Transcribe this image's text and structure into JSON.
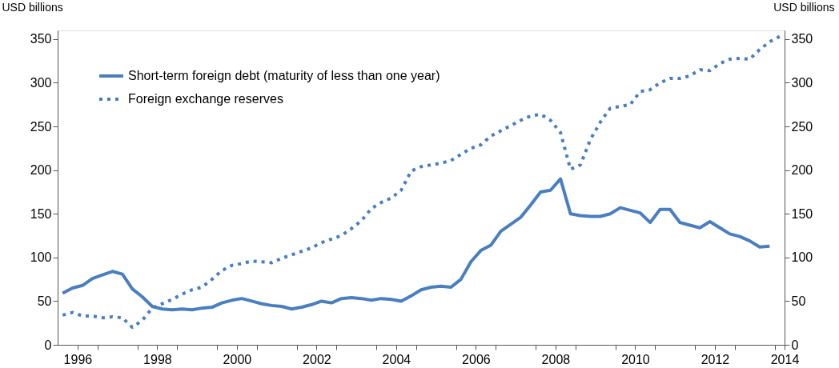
{
  "chart_data": {
    "type": "line",
    "ylabel": "USD billions",
    "y2label": "USD billions",
    "x": [
      1996.125,
      1996.375,
      1996.625,
      1996.875,
      1997.125,
      1997.375,
      1997.625,
      1997.875,
      1998.125,
      1998.375,
      1998.625,
      1998.875,
      1999.125,
      1999.375,
      1999.625,
      1999.875,
      2000.125,
      2000.375,
      2000.625,
      2000.875,
      2001.125,
      2001.375,
      2001.625,
      2001.875,
      2002.125,
      2002.375,
      2002.625,
      2002.875,
      2003.125,
      2003.375,
      2003.625,
      2003.875,
      2004.125,
      2004.375,
      2004.625,
      2004.875,
      2005.125,
      2005.375,
      2005.625,
      2005.875,
      2006.125,
      2006.375,
      2006.625,
      2006.875,
      2007.125,
      2007.375,
      2007.625,
      2007.875,
      2008.125,
      2008.375,
      2008.625,
      2008.875,
      2009.125,
      2009.375,
      2009.625,
      2009.875,
      2010.125,
      2010.375,
      2010.625,
      2010.875,
      2011.125,
      2011.375,
      2011.625,
      2011.875,
      2012.125,
      2012.375,
      2012.625,
      2012.875,
      2013.125,
      2013.375,
      2013.625,
      2013.875,
      2014.125
    ],
    "series": [
      {
        "name": "Short-term foreign debt (maturity of less than one year)",
        "color": "#4a7ebf",
        "line_style": "solid",
        "values": [
          59,
          65,
          68,
          76,
          80,
          84,
          81,
          64,
          55,
          44,
          41,
          40,
          41,
          40,
          42,
          43,
          48,
          51,
          53,
          50,
          47,
          45,
          44,
          41,
          43,
          46,
          50,
          48,
          53,
          54,
          53,
          51,
          53,
          52,
          50,
          56,
          63,
          66,
          67,
          66,
          75,
          95,
          108,
          114,
          130,
          138,
          146,
          160,
          175,
          177,
          190,
          150,
          148,
          147,
          147,
          150,
          157,
          154,
          151,
          140,
          155,
          155,
          140,
          137,
          134,
          141,
          134,
          127,
          124,
          119,
          112,
          113,
          null
        ]
      },
      {
        "name": "Foreign exchange reserves",
        "color": "#4a7ebf",
        "line_style": "dotted",
        "values": [
          34,
          37,
          33,
          33,
          31,
          32,
          31,
          20,
          28,
          42,
          47,
          52,
          58,
          63,
          66,
          75,
          85,
          91,
          93,
          96,
          95,
          94,
          99,
          103,
          107,
          111,
          117,
          121,
          125,
          133,
          142,
          156,
          163,
          168,
          177,
          199,
          204,
          206,
          208,
          211,
          218,
          225,
          229,
          239,
          245,
          251,
          257,
          262,
          264,
          257,
          243,
          201,
          206,
          235,
          255,
          271,
          273,
          275,
          290,
          292,
          300,
          305,
          305,
          308,
          315,
          314,
          322,
          327,
          328,
          327,
          338,
          347,
          353
        ]
      }
    ],
    "xlim": [
      1996.0,
      2014.25
    ],
    "xticks": [
      {
        "value": 1996.5,
        "label": "1996"
      },
      {
        "value": 1997,
        "label": null
      },
      {
        "value": 1998,
        "label": null
      },
      {
        "value": 1998.5,
        "label": "1998"
      },
      {
        "value": 1999,
        "label": null
      },
      {
        "value": 2000,
        "label": null
      },
      {
        "value": 2000.5,
        "label": "2000"
      },
      {
        "value": 2001,
        "label": null
      },
      {
        "value": 2002,
        "label": null
      },
      {
        "value": 2002.5,
        "label": "2002"
      },
      {
        "value": 2003,
        "label": null
      },
      {
        "value": 2004,
        "label": null
      },
      {
        "value": 2004.5,
        "label": "2004"
      },
      {
        "value": 2005,
        "label": null
      },
      {
        "value": 2006,
        "label": null
      },
      {
        "value": 2006.5,
        "label": "2006"
      },
      {
        "value": 2007,
        "label": null
      },
      {
        "value": 2008,
        "label": null
      },
      {
        "value": 2008.5,
        "label": "2008"
      },
      {
        "value": 2009,
        "label": null
      },
      {
        "value": 2010,
        "label": null
      },
      {
        "value": 2010.5,
        "label": "2010"
      },
      {
        "value": 2011,
        "label": null
      },
      {
        "value": 2012,
        "label": null
      },
      {
        "value": 2012.5,
        "label": "2012"
      },
      {
        "value": 2013,
        "label": null
      },
      {
        "value": 2014,
        "label": null
      },
      {
        "value": 2014.25,
        "label": "2014"
      }
    ],
    "ylim": [
      0,
      360
    ],
    "yticks": [
      0,
      50,
      100,
      150,
      200,
      250,
      300,
      350
    ],
    "y2lim": [
      0,
      360
    ],
    "y2ticks": [
      0,
      50,
      100,
      150,
      200,
      250,
      300,
      350
    ],
    "grid": false,
    "legend": "top left",
    "marker": "none"
  }
}
